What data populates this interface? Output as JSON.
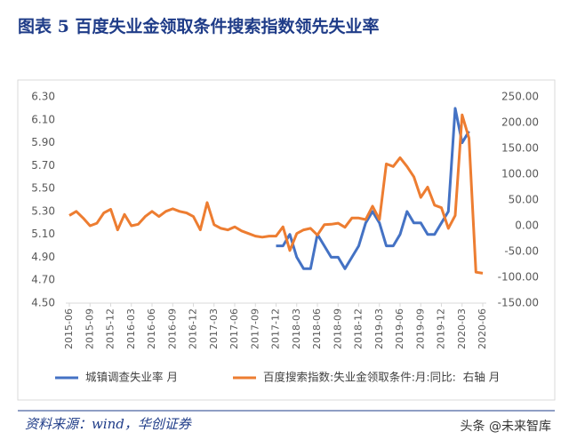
{
  "chart_data": {
    "type": "line",
    "title": "图表 5   百度失业金领取条件搜索指数领先失业率",
    "source": "资料来源：wind，华创证券",
    "watermark": "头条 @未来智库",
    "categories": [
      "2015-06",
      null,
      null,
      "2015-09",
      null,
      null,
      "2015-12",
      null,
      null,
      "2016-03",
      null,
      null,
      "2016-06",
      null,
      null,
      "2016-09",
      null,
      null,
      "2016-12",
      null,
      null,
      "2017-03",
      null,
      null,
      "2017-06",
      null,
      null,
      "2017-09",
      null,
      null,
      "2017-12",
      null,
      null,
      "2018-03",
      null,
      null,
      "2018-06",
      null,
      null,
      "2018-09",
      null,
      null,
      "2018-12",
      null,
      null,
      "2019-03",
      null,
      null,
      "2019-06",
      null,
      null,
      "2019-09",
      null,
      null,
      "2019-12",
      null,
      null,
      "2020-03",
      null,
      null,
      "2020-06"
    ],
    "series": [
      {
        "name": "城镇调查失业率 月",
        "color": "#4472c4",
        "axis": "y",
        "values": [
          null,
          null,
          null,
          null,
          null,
          null,
          null,
          null,
          null,
          null,
          null,
          null,
          null,
          null,
          null,
          null,
          null,
          null,
          null,
          null,
          null,
          null,
          null,
          null,
          null,
          null,
          null,
          null,
          null,
          null,
          5.0,
          5.0,
          5.1,
          4.9,
          4.8,
          4.8,
          5.1,
          5.0,
          4.9,
          4.9,
          4.8,
          4.9,
          5.0,
          5.2,
          5.3,
          5.2,
          5.0,
          5.0,
          5.1,
          5.3,
          5.2,
          5.2,
          5.1,
          5.1,
          5.2,
          5.3,
          6.2,
          5.9,
          6.0,
          null,
          null
        ]
      },
      {
        "name": "百度搜索指数:失业金领取条件:月:同比:  右轴 月",
        "color": "#ed7d31",
        "axis": "y2",
        "values": [
          20,
          28,
          15,
          0,
          5,
          25,
          32,
          -8,
          22,
          0,
          3,
          18,
          28,
          18,
          28,
          33,
          28,
          25,
          18,
          -8,
          45,
          2,
          -5,
          -8,
          -2,
          -10,
          -15,
          -20,
          -22,
          -20,
          -20,
          -2,
          -48,
          -15,
          -8,
          -5,
          -18,
          2,
          3,
          5,
          -3,
          15,
          15,
          12,
          38,
          12,
          120,
          115,
          132,
          115,
          95,
          55,
          75,
          40,
          35,
          -5,
          20,
          215,
          170,
          -90,
          -92
        ]
      }
    ],
    "ylim": [
      4.5,
      6.3
    ],
    "yticks": [
      {
        "value": 4.5,
        "label": "4.50"
      },
      {
        "value": 4.7,
        "label": "4.70"
      },
      {
        "value": 4.9,
        "label": "4.90"
      },
      {
        "value": 5.1,
        "label": "5.10"
      },
      {
        "value": 5.3,
        "label": "5.30"
      },
      {
        "value": 5.5,
        "label": "5.50"
      },
      {
        "value": 5.7,
        "label": "5.70"
      },
      {
        "value": 5.9,
        "label": "5.90"
      },
      {
        "value": 6.1,
        "label": "6.10"
      },
      {
        "value": 6.3,
        "label": "6.30"
      }
    ],
    "y2lim": [
      -150,
      250
    ],
    "y2ticks": [
      {
        "value": -150,
        "label": "-150.00"
      },
      {
        "value": -100,
        "label": "-100.00"
      },
      {
        "value": -50,
        "label": "-50.00"
      },
      {
        "value": 0,
        "label": "0.00"
      },
      {
        "value": 50,
        "label": "50.00"
      },
      {
        "value": 100,
        "label": "100.00"
      },
      {
        "value": 150,
        "label": "150.00"
      },
      {
        "value": 200,
        "label": "200.00"
      },
      {
        "value": 250,
        "label": "250.00"
      }
    ],
    "grid": false
  }
}
